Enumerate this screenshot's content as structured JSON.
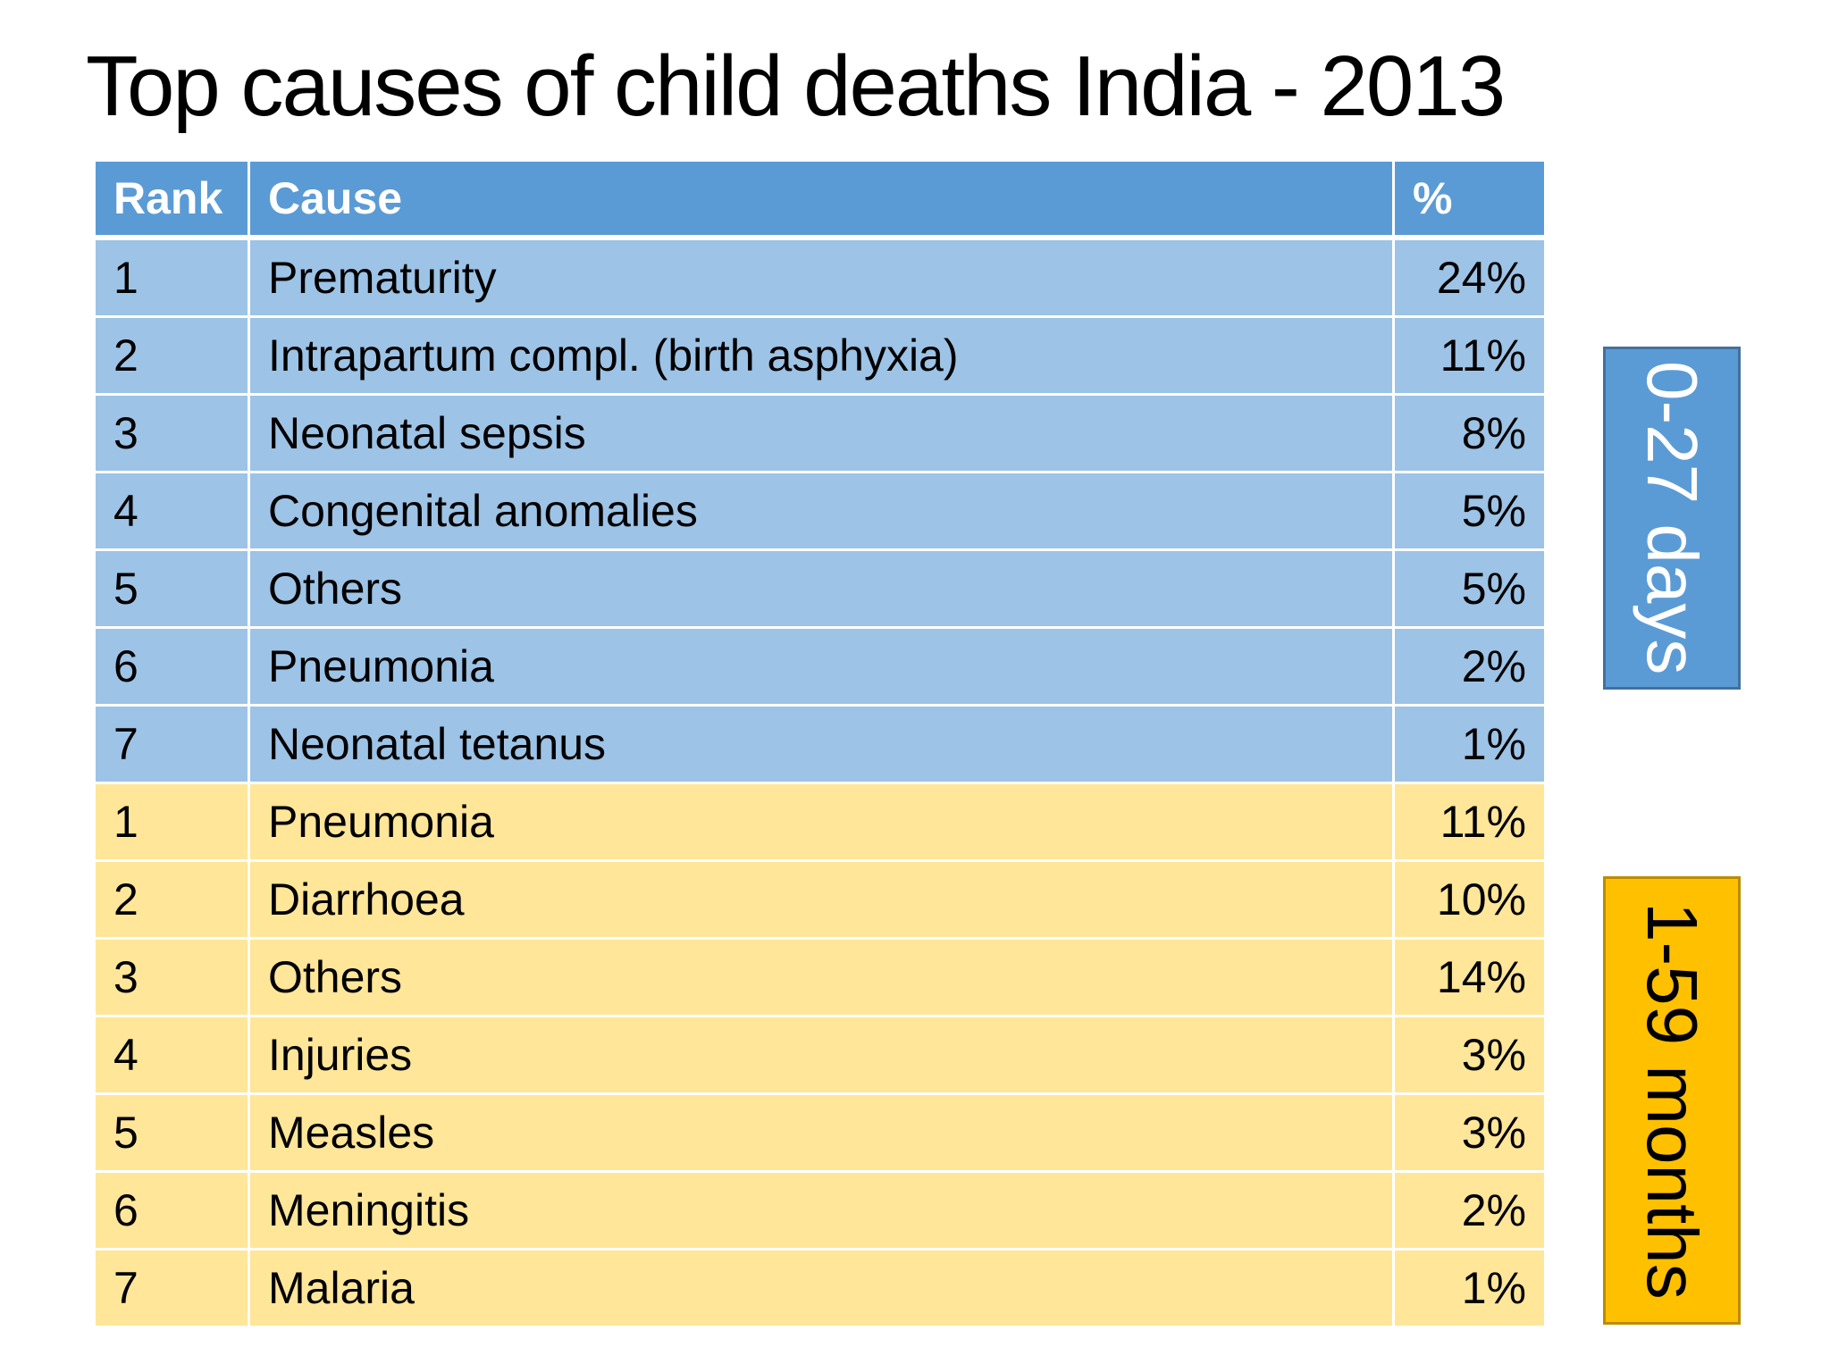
{
  "title": "Top causes of child deaths India - 2013",
  "table": {
    "headers": {
      "rank": "Rank",
      "cause": "Cause",
      "percent": "%"
    },
    "neonatal_rows": [
      {
        "rank": "1",
        "cause": "Prematurity",
        "percent": "24%"
      },
      {
        "rank": "2",
        "cause": "Intrapartum compl. (birth asphyxia)",
        "percent": "11%"
      },
      {
        "rank": "3",
        "cause": "Neonatal sepsis",
        "percent": "8%"
      },
      {
        "rank": "4",
        "cause": "Congenital anomalies",
        "percent": "5%"
      },
      {
        "rank": "5",
        "cause": "Others",
        "percent": "5%"
      },
      {
        "rank": "6",
        "cause": "Pneumonia",
        "percent": "2%"
      },
      {
        "rank": "7",
        "cause": "Neonatal tetanus",
        "percent": "1%"
      }
    ],
    "child_rows": [
      {
        "rank": "1",
        "cause": "Pneumonia",
        "percent": "11%"
      },
      {
        "rank": "2",
        "cause": "Diarrhoea",
        "percent": "10%"
      },
      {
        "rank": "3",
        "cause": "Others",
        "percent": "14%"
      },
      {
        "rank": "4",
        "cause": "Injuries",
        "percent": "3%"
      },
      {
        "rank": "5",
        "cause": "Measles",
        "percent": "3%"
      },
      {
        "rank": "6",
        "cause": "Meningitis",
        "percent": "2%"
      },
      {
        "rank": "7",
        "cause": "Malaria",
        "percent": "1%"
      }
    ]
  },
  "bands": {
    "neonatal_label": "0-27 days",
    "child_label": "1-59 months"
  },
  "colors": {
    "header_blue": "#5b9bd5",
    "neonatal_row_blue": "#9dc3e6",
    "child_row_yellow": "#ffe699",
    "child_band_orange": "#ffc000"
  }
}
